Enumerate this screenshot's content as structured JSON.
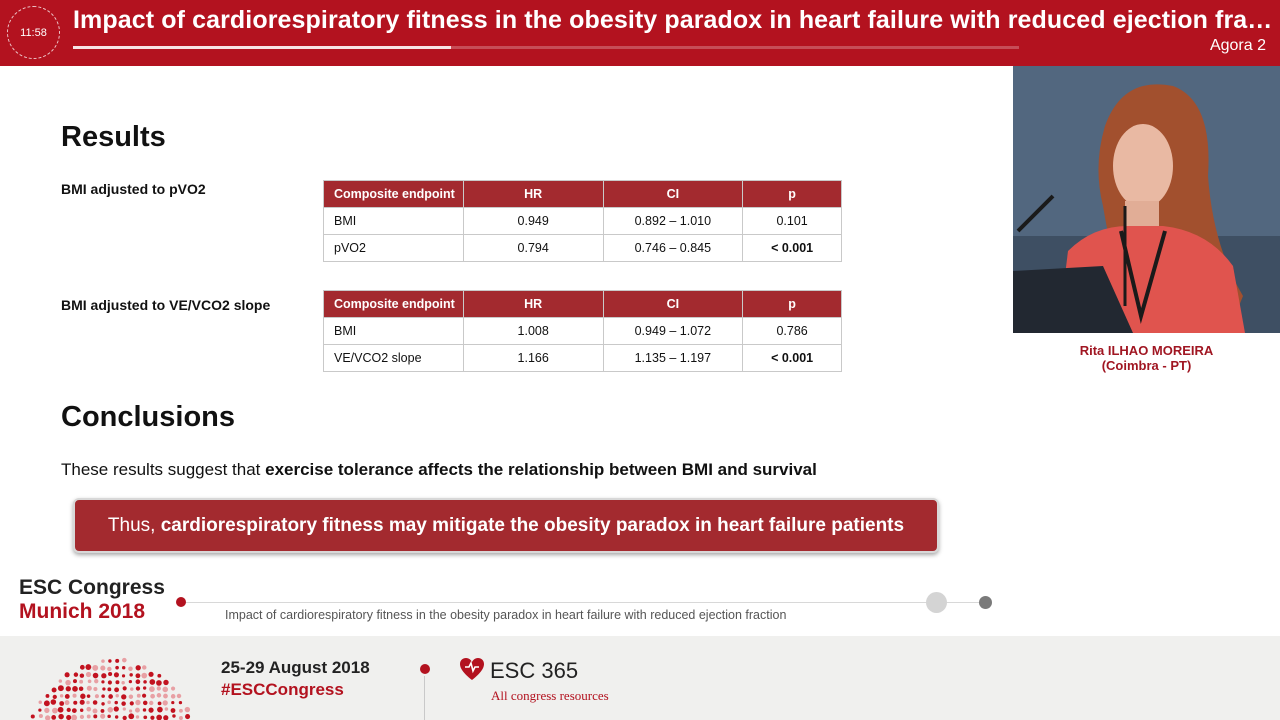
{
  "header": {
    "clock": "11:58",
    "title": "Impact of cardiorespiratory fitness in the obesity paradox in heart failure with reduced ejection fraction",
    "room": "Agora 2",
    "progress_fraction": 0.4,
    "color": "#b3121f"
  },
  "slide": {
    "results_heading": "Results",
    "tables": [
      {
        "label": "BMI adjusted to pVO2",
        "headers": [
          "Composite endpoint",
          "HR",
          "CI",
          "p"
        ],
        "rows": [
          [
            "BMI",
            "0.949",
            "0.892 – 1.010",
            "0.101"
          ],
          [
            "pVO2",
            "0.794",
            "0.746 – 0.845",
            "< 0.001"
          ]
        ]
      },
      {
        "label": "BMI adjusted to VE/VCO2 slope",
        "headers": [
          "Composite endpoint",
          "HR",
          "CI",
          "p"
        ],
        "rows": [
          [
            "BMI",
            "1.008",
            "0.949 – 1.072",
            "0.786"
          ],
          [
            "VE/VCO2 slope",
            "1.166",
            "1.135 – 1.197",
            "< 0.001"
          ]
        ]
      }
    ],
    "conclusions_heading": "Conclusions",
    "conclusion_prefix": "These results suggest that ",
    "conclusion_bold": "exercise tolerance affects the relationship between BMI and survival",
    "callout_prefix": "Thus, ",
    "callout_bold": "cardiorespiratory fitness may mitigate the obesity paradox in heart failure patients",
    "table_header_color": "#a32a2f"
  },
  "slide_footer": {
    "logo_line1": "ESC Congress",
    "logo_line2": "Munich 2018",
    "title": "Impact of cardiorespiratory fitness in the obesity paradox in heart failure with reduced ejection fraction"
  },
  "speaker": {
    "name": "Rita ILHAO MOREIRA",
    "affiliation": "(Coimbra - PT)"
  },
  "banner": {
    "dates": "25-29 August 2018",
    "hashtag": "#ESCCongress",
    "esc365": "ESC 365",
    "esc365_sub": "All congress resources"
  }
}
